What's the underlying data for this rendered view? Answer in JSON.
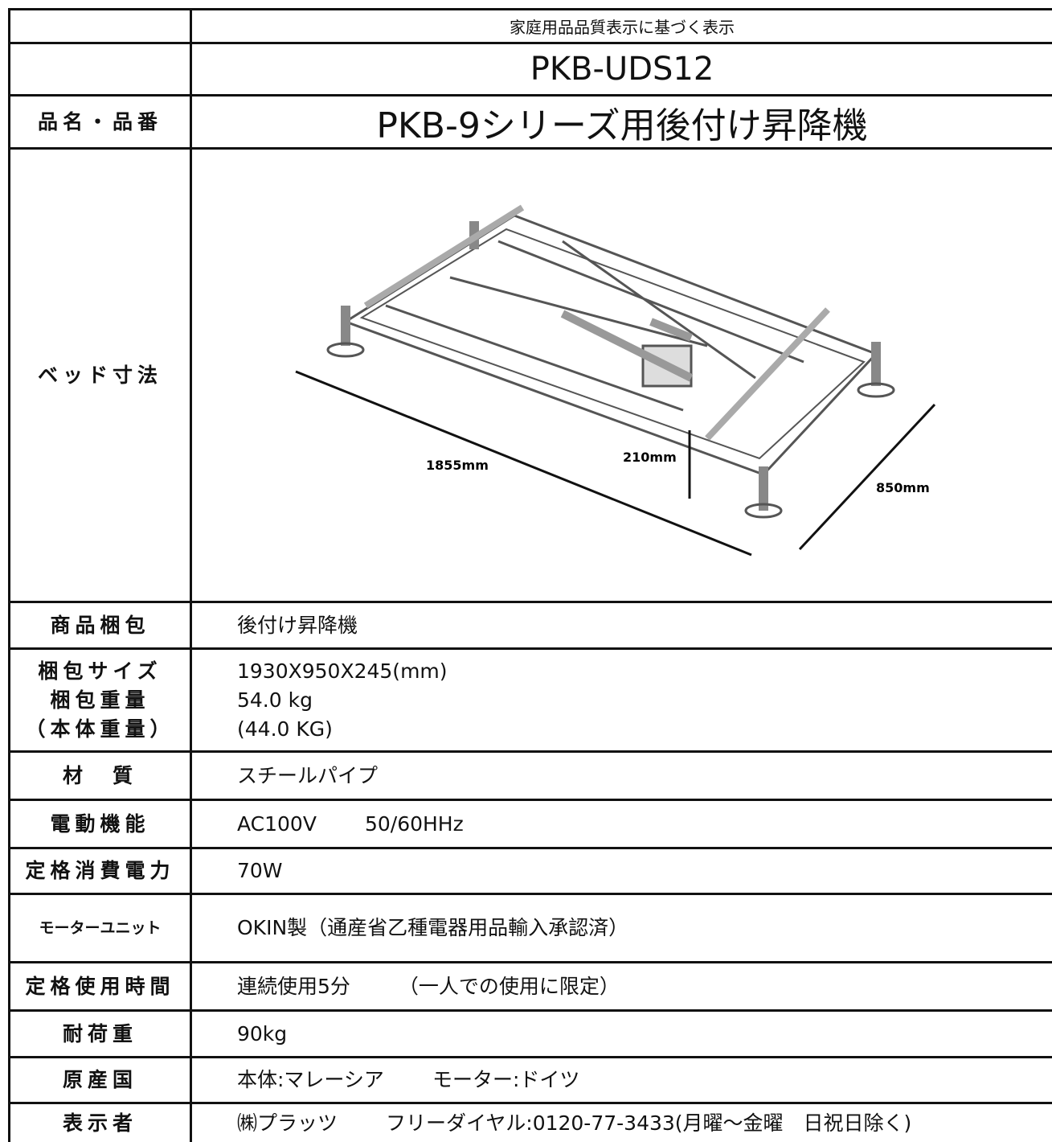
{
  "header": {
    "note": "家庭用品品質表示に基づく表示",
    "model": "PKB-UDS12"
  },
  "product": {
    "label": "品名・品番",
    "name": "PKB-9シリーズ用後付け昇降機"
  },
  "dimensions": {
    "label": "ベッド寸法",
    "length": "1855mm",
    "height": "210mm",
    "width": "850mm"
  },
  "specs": [
    {
      "label": [
        "商品梱包"
      ],
      "value": [
        [
          "後付け昇降機"
        ]
      ]
    },
    {
      "label": [
        "梱包サイズ",
        "梱包重量",
        "（本体重量）"
      ],
      "value": [
        [
          "1930X950X245(mm)"
        ],
        [
          "54.0 kg"
        ],
        [
          "(44.0 KG)"
        ]
      ]
    },
    {
      "label": [
        "材　質"
      ],
      "value": [
        [
          "スチールパイプ"
        ]
      ]
    },
    {
      "label": [
        "電動機能"
      ],
      "value": [
        [
          "AC100V",
          "50/60HHz"
        ]
      ]
    },
    {
      "label": [
        "定格消費電力"
      ],
      "value": [
        [
          "70W"
        ]
      ]
    },
    {
      "label": [
        "モーターユニット"
      ],
      "value": [
        [
          "OKIN製（通産省乙種電器用品輸入承認済）"
        ]
      ]
    },
    {
      "label": [
        "定格使用時間"
      ],
      "value": [
        [
          "連続使用5分",
          "（一人での使用に限定）"
        ]
      ]
    },
    {
      "label": [
        "耐荷重"
      ],
      "value": [
        [
          "90kg"
        ]
      ]
    },
    {
      "label": [
        "原産国"
      ],
      "value": [
        [
          "本体:マレーシア",
          "モーター:ドイツ"
        ]
      ]
    },
    {
      "label": [
        "表示者"
      ],
      "value": [
        [
          "㈱プラッツ",
          "フリーダイヤル:0120-77-3433(月曜～金曜　日祝日除く)"
        ]
      ]
    }
  ]
}
